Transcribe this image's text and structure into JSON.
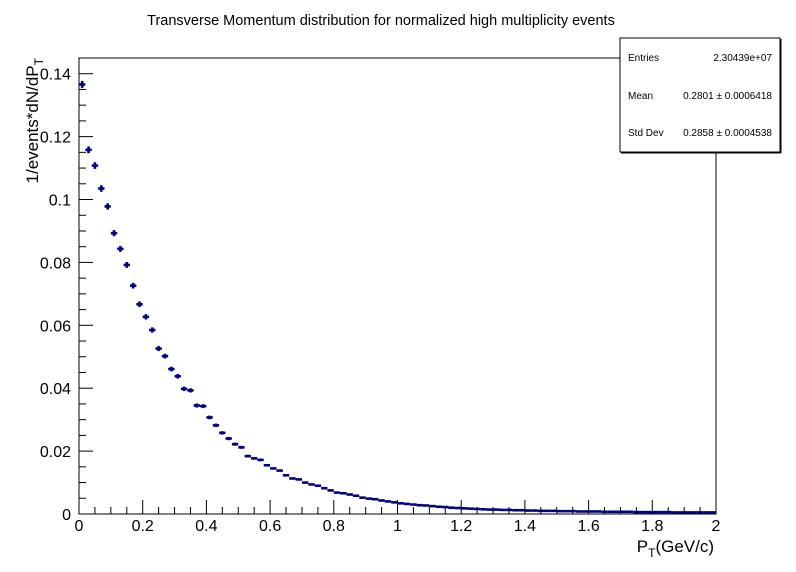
{
  "chart_data": {
    "type": "scatter",
    "title": "Transverse Momentum distribution for normalized high multiplicity events",
    "xlabel": {
      "main": "P",
      "sub": "T",
      "rest": "(GeV/c)"
    },
    "ylabel": {
      "main": "1/events*dN/dP",
      "sub": "T"
    },
    "xlim": [
      0,
      2
    ],
    "ylim": [
      0,
      0.145
    ],
    "xticks": [
      "0",
      "0.2",
      "0.4",
      "0.6",
      "0.8",
      "1",
      "1.2",
      "1.4",
      "1.6",
      "1.8",
      "2"
    ],
    "xtick_values": [
      0,
      0.2,
      0.4,
      0.6,
      0.8,
      1.0,
      1.2,
      1.4,
      1.6,
      1.8,
      2.0
    ],
    "yticks": [
      "0",
      "0.02",
      "0.04",
      "0.06",
      "0.08",
      "0.1",
      "0.12",
      "0.14"
    ],
    "ytick_values": [
      0,
      0.02,
      0.04,
      0.06,
      0.08,
      0.1,
      0.12,
      0.14
    ],
    "bin_width": 0.02,
    "marker_color": "#000080",
    "values": [
      0.1366,
      0.1158,
      0.1108,
      0.1035,
      0.0978,
      0.0893,
      0.0843,
      0.0792,
      0.0726,
      0.0667,
      0.0627,
      0.0585,
      0.0526,
      0.0502,
      0.0461,
      0.0438,
      0.0398,
      0.0393,
      0.0345,
      0.0343,
      0.0307,
      0.0282,
      0.0258,
      0.024,
      0.0222,
      0.0212,
      0.0184,
      0.0177,
      0.0172,
      0.0155,
      0.0145,
      0.0138,
      0.0123,
      0.0113,
      0.011,
      0.01,
      0.0094,
      0.009,
      0.0082,
      0.0075,
      0.0068,
      0.0066,
      0.0062,
      0.0058,
      0.0052,
      0.0049,
      0.0047,
      0.0043,
      0.004,
      0.0037,
      0.0034,
      0.0032,
      0.003,
      0.0028,
      0.0027,
      0.0025,
      0.0023,
      0.0022,
      0.002,
      0.0019,
      0.0018,
      0.0017,
      0.0016,
      0.0015,
      0.0014,
      0.0014,
      0.0013,
      0.0013,
      0.0012,
      0.0012,
      0.0011,
      0.0011,
      0.001,
      0.001,
      0.001,
      0.0009,
      0.0009,
      0.0009,
      0.0008,
      0.0008,
      0.0008,
      0.0008,
      0.0007,
      0.0007,
      0.0007,
      0.0007,
      0.0007,
      0.0006,
      0.0006,
      0.0006,
      0.0006,
      0.0006,
      0.0006,
      0.0005,
      0.0005,
      0.0005,
      0.0005,
      0.0005,
      0.0005,
      0.0005
    ],
    "stats": {
      "entries_label": "Entries",
      "entries_value": "2.30439e+07",
      "mean_label": "Mean",
      "mean_value": "0.2801 ± 0.0006418",
      "stddev_label": "Std Dev",
      "stddev_value": "0.2858 ± 0.0004538"
    },
    "grid": false,
    "stats_box_placement": "top-right"
  }
}
